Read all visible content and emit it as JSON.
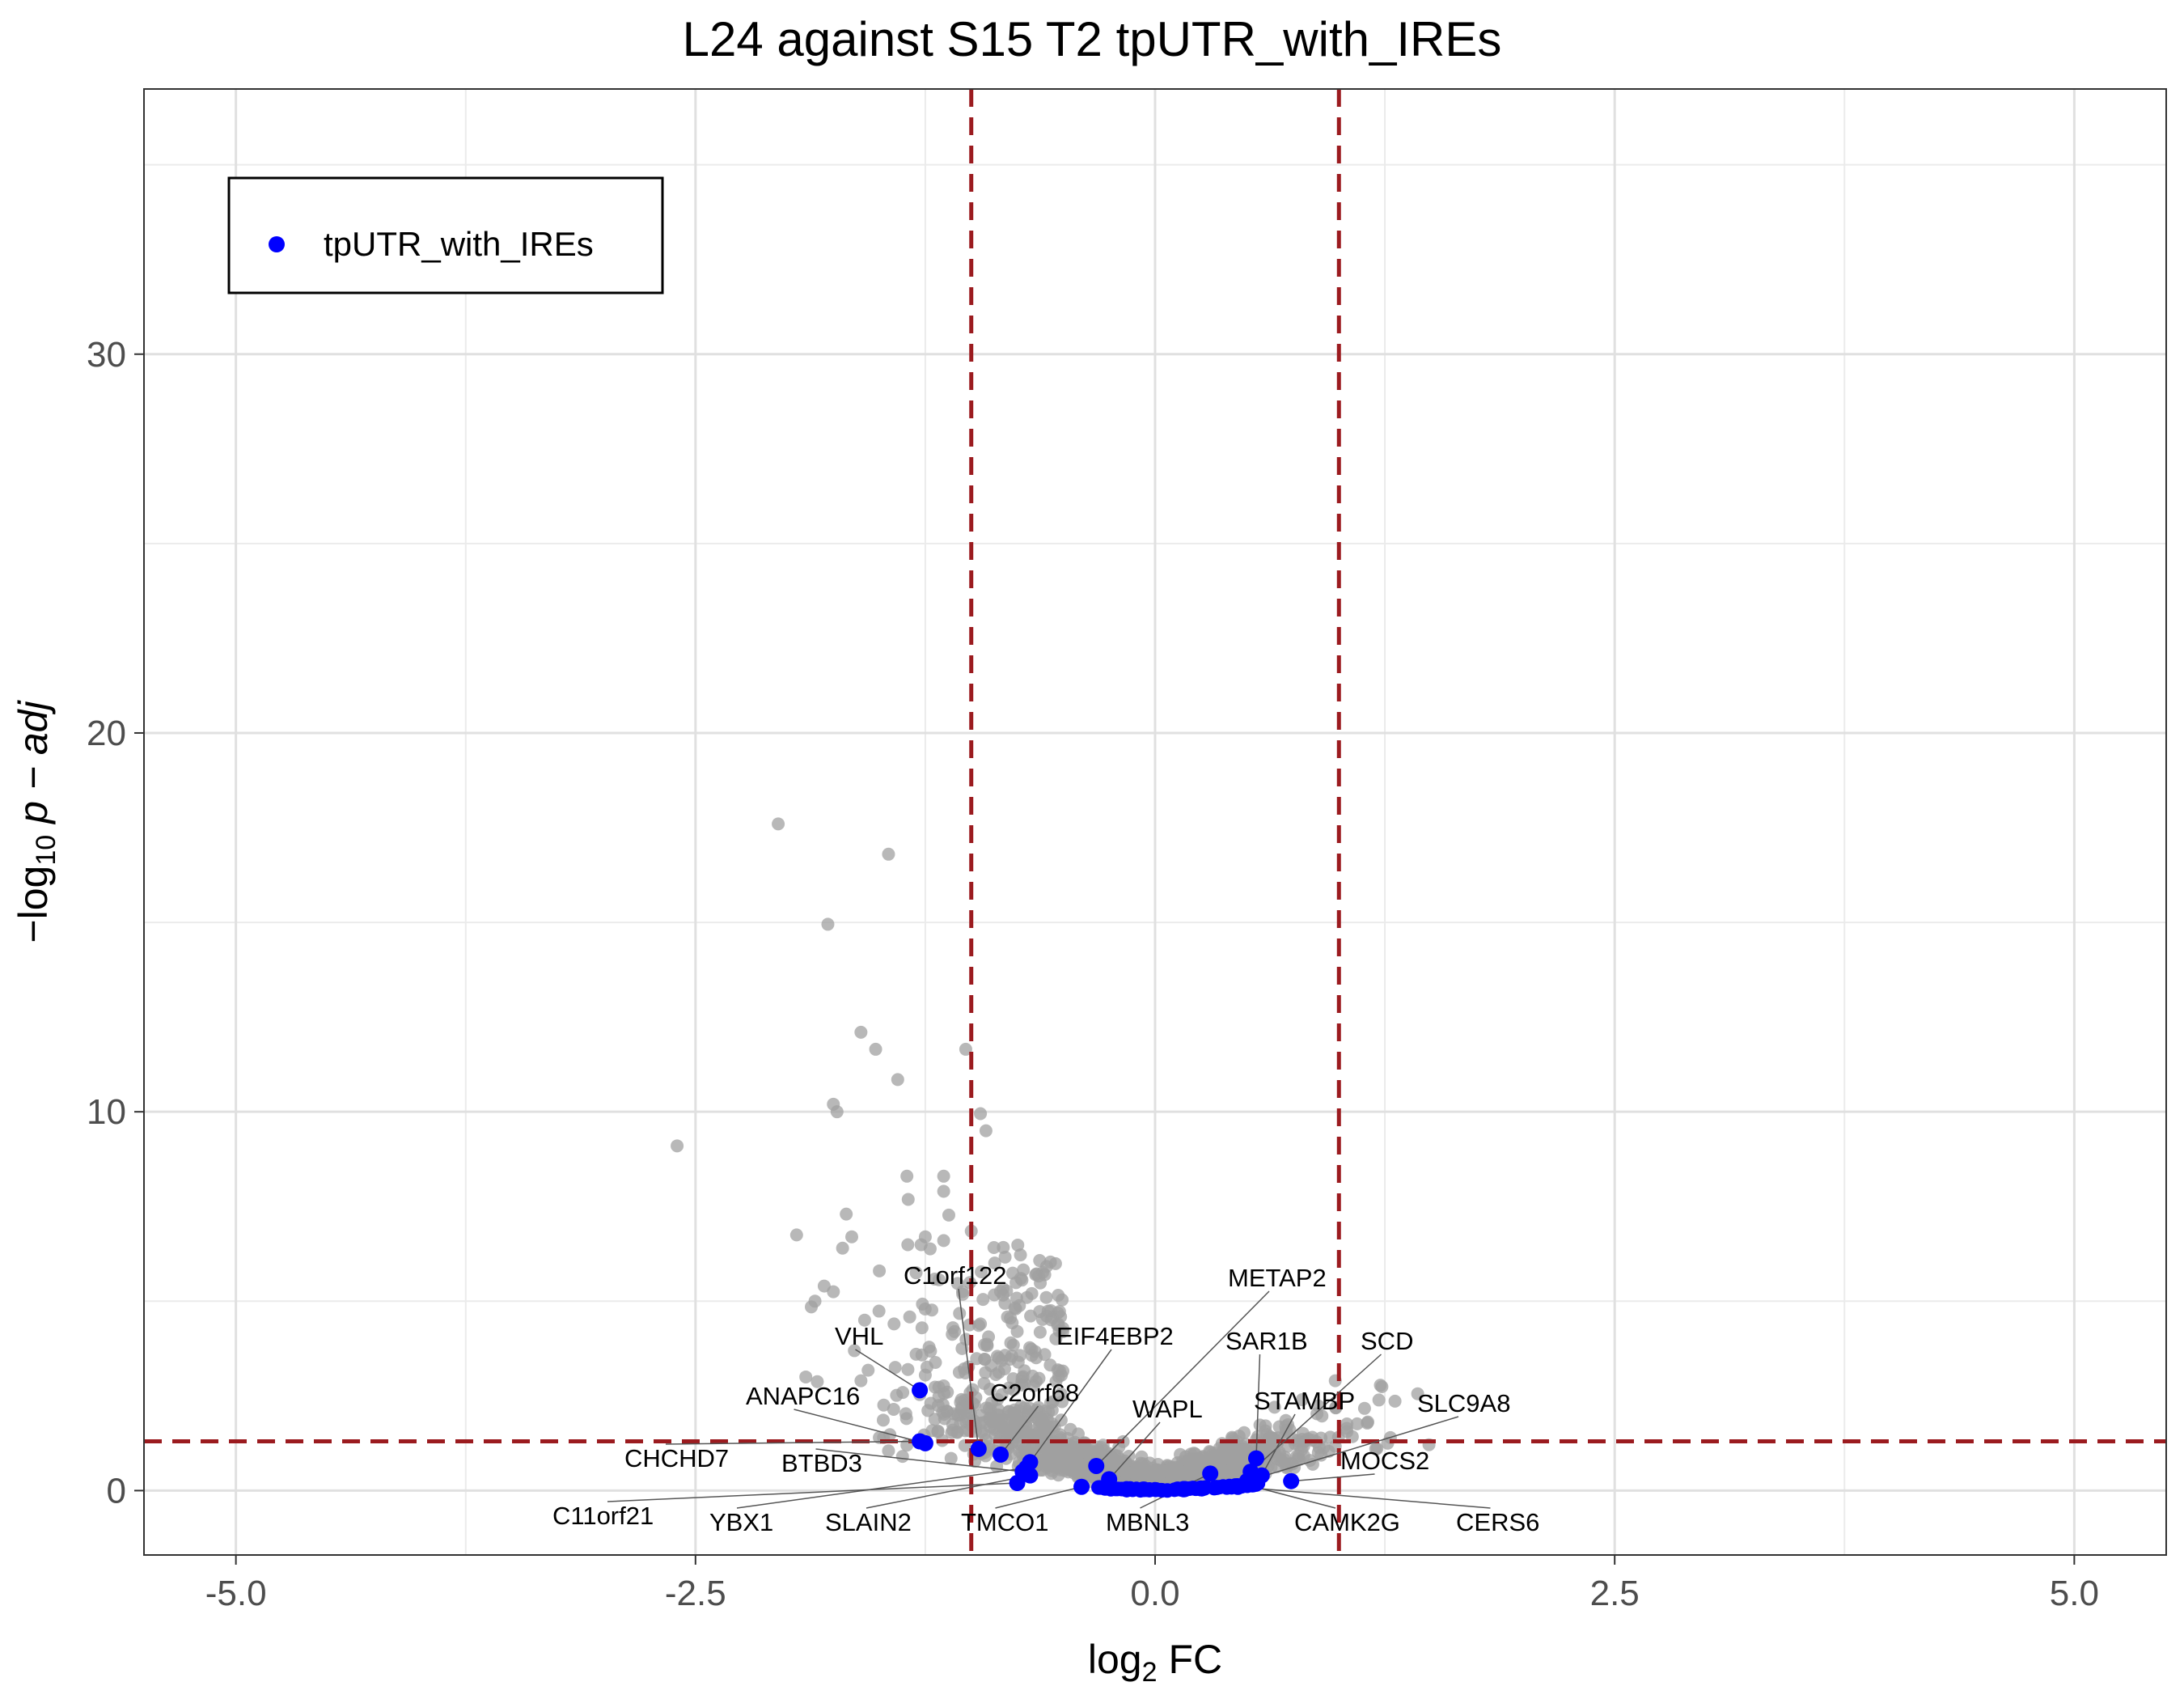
{
  "chart_data": {
    "type": "scatter",
    "title": "L24 against S15 T2 tpUTR_with_IREs",
    "xlabel": "log2 FC",
    "ylabel": "-log10 p - adj",
    "xlim": [
      -5.5,
      5.5
    ],
    "ylim": [
      -1.7,
      37
    ],
    "x_ticks": [
      "-5.0",
      "-2.5",
      "0.0",
      "2.5",
      "5.0"
    ],
    "y_ticks": [
      "0",
      "10",
      "20",
      "30"
    ],
    "grid": true,
    "legend_position": "top-left",
    "fc_thresholds": [
      -1,
      1
    ],
    "padj_threshold": 1.3,
    "threshold_color": "#9b1b1f",
    "colors": {
      "background_genes": "#a0a0a0",
      "highlight": "#0000ff"
    },
    "legend": [
      {
        "label": "tpUTR_with_IREs",
        "color": "#0000ff"
      }
    ],
    "series": [
      {
        "name": "tpUTR_with_IREs",
        "points": [
          {
            "x": -1.28,
            "y": 2.65,
            "label": "VHL"
          },
          {
            "x": -1.25,
            "y": 1.25,
            "label": "ANAPC16"
          },
          {
            "x": -1.28,
            "y": 1.3,
            "label": "CHCHD7"
          },
          {
            "x": -0.96,
            "y": 1.1,
            "label": "C1orf122"
          },
          {
            "x": -0.84,
            "y": 0.95,
            "label": "C2orf68"
          },
          {
            "x": -0.72,
            "y": 0.5,
            "label": "BTBD3"
          },
          {
            "x": -0.68,
            "y": 0.75,
            "label": "EIF4EBP2"
          },
          {
            "x": -0.75,
            "y": 0.2,
            "label": "C11orf21"
          },
          {
            "x": -0.7,
            "y": 0.6,
            "label": "YBX1"
          },
          {
            "x": -0.68,
            "y": 0.4,
            "label": "SLAIN2"
          },
          {
            "x": -0.4,
            "y": 0.1,
            "label": "TMCO1"
          },
          {
            "x": -0.32,
            "y": 0.65,
            "label": "METAP2"
          },
          {
            "x": -0.25,
            "y": 0.3,
            "label": "WAPL"
          },
          {
            "x": 0.3,
            "y": 0.45,
            "label": "MBNL3"
          },
          {
            "x": 0.55,
            "y": 0.85,
            "label": "SAR1B"
          },
          {
            "x": 0.58,
            "y": 0.4,
            "label": "STAMBP"
          },
          {
            "x": 0.52,
            "y": 0.5,
            "label": "SCD"
          },
          {
            "x": 0.5,
            "y": 0.25,
            "label": "SLC9A8"
          },
          {
            "x": 0.5,
            "y": 0.15,
            "label": "CAMK2G"
          },
          {
            "x": 0.74,
            "y": 0.25,
            "label": "MOCS2"
          },
          {
            "x": 0.45,
            "y": 0.1,
            "label": "CERS6"
          }
        ]
      }
    ],
    "labels": [
      "VHL",
      "C1orf122",
      "EIF4EBP2",
      "ANAPC16",
      "C2orf68",
      "CHCHD7",
      "BTBD3",
      "C11orf21",
      "YBX1",
      "SLAIN2",
      "TMCO1",
      "METAP2",
      "WAPL",
      "MBNL3",
      "SAR1B",
      "SCD",
      "STAMBP",
      "SLC9A8",
      "MOCS2",
      "CAMK2G",
      "CERS6"
    ]
  }
}
